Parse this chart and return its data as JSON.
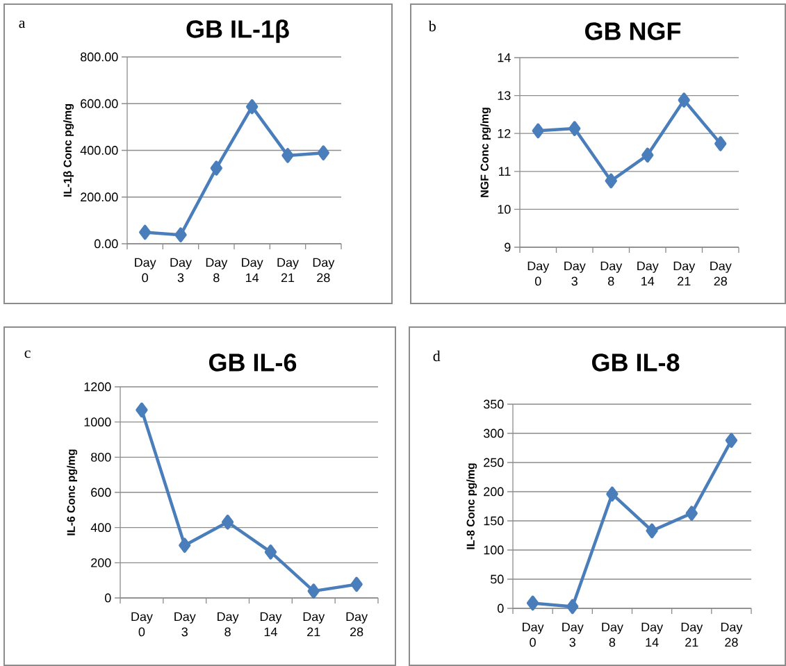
{
  "chart_data": [
    {
      "type": "line",
      "title": "GB IL-1β",
      "ylabel": "IL-1β Conc pg/mg",
      "annotations": [
        "a"
      ],
      "categories": [
        "Day 0",
        "Day 3",
        "Day 8",
        "Day 14",
        "Day 21",
        "Day 28"
      ],
      "values": [
        49,
        38,
        324,
        587,
        378,
        389
      ],
      "color": "#4a7ebb",
      "marker": "diamond",
      "grid": "y",
      "ylim": [
        0,
        800
      ],
      "yticks": [
        {
          "value": 0,
          "label": "0.00"
        },
        {
          "value": 200,
          "label": "200.00"
        },
        {
          "value": 400,
          "label": "400.00"
        },
        {
          "value": 600,
          "label": "600.00"
        },
        {
          "value": 800,
          "label": "800.00"
        }
      ]
    },
    {
      "type": "line",
      "title": "GB NGF",
      "ylabel": "NGF Conc pg/mg",
      "annotations": [
        "b"
      ],
      "categories": [
        "Day 0",
        "Day 3",
        "Day 8",
        "Day 14",
        "Day 21",
        "Day 28"
      ],
      "values": [
        12.07,
        12.13,
        10.75,
        11.43,
        12.88,
        11.73
      ],
      "color": "#4a7ebb",
      "marker": "diamond",
      "grid": "y",
      "ylim": [
        9,
        14
      ],
      "yticks": [
        9,
        10,
        11,
        12,
        13,
        14
      ]
    },
    {
      "type": "line",
      "title": "GB IL-6",
      "ylabel": "IL-6 Conc pg/mg",
      "annotations": [
        "c"
      ],
      "categories": [
        "Day 0",
        "Day 3",
        "Day 8",
        "Day 14",
        "Day 21",
        "Day 28"
      ],
      "values": [
        1068,
        299,
        431,
        261,
        39,
        77
      ],
      "color": "#4a7ebb",
      "marker": "diamond",
      "grid": "y",
      "ylim": [
        0,
        1200
      ],
      "yticks": [
        0,
        200,
        400,
        600,
        800,
        1000,
        1200
      ]
    },
    {
      "type": "line",
      "title": "GB IL-8",
      "ylabel": "IL-8 Conc pg/mg",
      "annotations": [
        "d"
      ],
      "categories": [
        "Day 0",
        "Day 3",
        "Day 8",
        "Day 14",
        "Day 21",
        "Day 28"
      ],
      "values": [
        9,
        3,
        196,
        133,
        163,
        288
      ],
      "color": "#4a7ebb",
      "marker": "diamond",
      "grid": "y",
      "ylim": [
        0,
        350
      ],
      "yticks": [
        0,
        50,
        100,
        150,
        200,
        250,
        300,
        350
      ]
    }
  ]
}
